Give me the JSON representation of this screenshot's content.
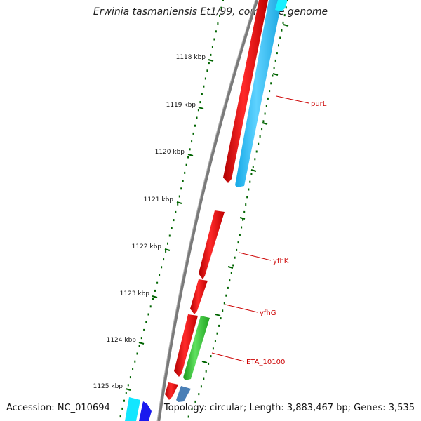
{
  "title": "Erwinia tasmaniensis Et1/99, complete genome",
  "accession": "Accession: NC_010694",
  "summary": "Topology: circular; Length: 3,883,467 bp; Genes: 3,535",
  "colors": {
    "backbone": "#808080",
    "forward_cds": "#ff0000",
    "reverse_cds": "#3ec8ff",
    "reverse_cds_light": "#00e5ff",
    "rna_green": "#33cc33",
    "steel_blue": "#4682b4",
    "blue": "#0000ff",
    "ruler": "#006400",
    "label": "#cc0000"
  },
  "ruler": {
    "ticks": [
      "1118 kbp",
      "1119 kbp",
      "1120 kbp",
      "1121 kbp",
      "1122 kbp",
      "1123 kbp",
      "1124 kbp",
      "1125 kbp"
    ]
  },
  "gene_labels": [
    "purL",
    "yfhK",
    "yfhG",
    "ETA_10100"
  ]
}
